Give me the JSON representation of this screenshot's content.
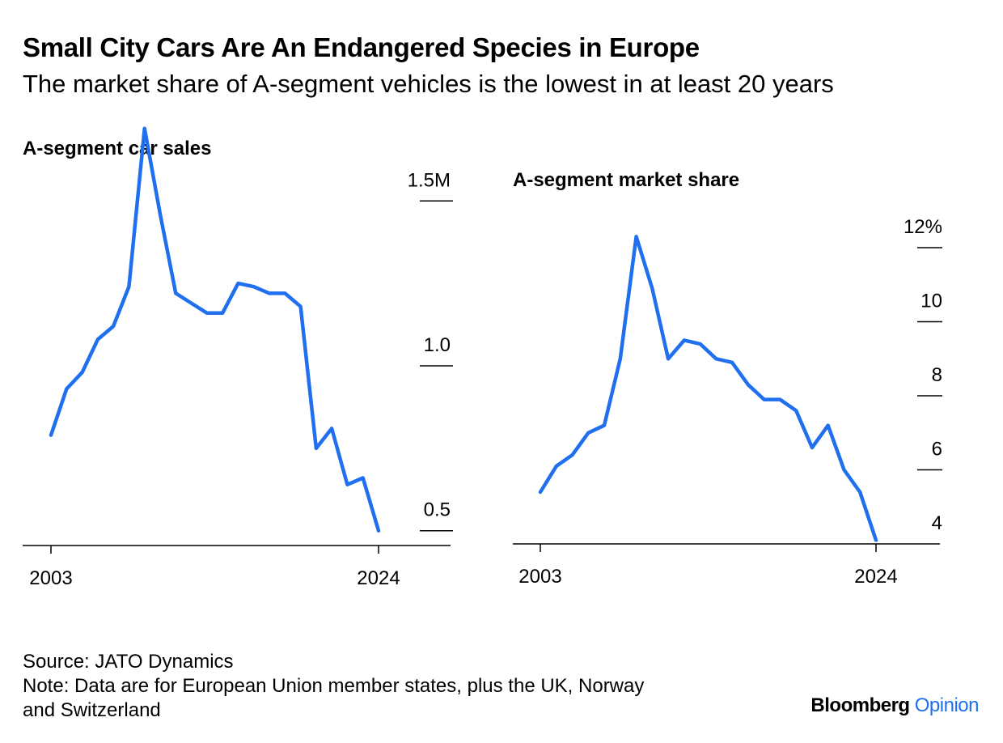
{
  "title": "Small City Cars Are An Endangered Species in Europe",
  "subtitle": "The market share of A-segment vehicles is the lowest in at least 20 years",
  "source": "Source: JATO Dynamics",
  "note_line1": "Note: Data are for European Union member states, plus the UK, Norway",
  "note_line2": "and Switzerland",
  "brand": {
    "name": "Bloomberg",
    "accent": "Opinion",
    "accent_color": "#1F6FEF"
  },
  "line_color": "#1F6FEF",
  "chart_data": [
    {
      "type": "line",
      "title": "A-segment car sales",
      "x_tick_labels": [
        "2003",
        "2024"
      ],
      "y_tick_labels": [
        "1.5M",
        "1.0",
        "0.5"
      ],
      "y_ticks": [
        1.5,
        1.0,
        0.5
      ],
      "xlim": [
        2003,
        2024
      ],
      "ylim": [
        0.46,
        1.54
      ],
      "x": [
        2003,
        2004,
        2005,
        2006,
        2007,
        2008,
        2009,
        2010,
        2011,
        2012,
        2013,
        2014,
        2015,
        2016,
        2017,
        2018,
        2019,
        2020,
        2021,
        2022,
        2023,
        2024
      ],
      "values": [
        0.79,
        0.93,
        0.98,
        1.08,
        1.12,
        1.24,
        1.72,
        1.46,
        1.22,
        1.19,
        1.16,
        1.16,
        1.25,
        1.24,
        1.22,
        1.22,
        1.18,
        0.75,
        0.81,
        0.64,
        0.66,
        0.5
      ]
    },
    {
      "type": "line",
      "title": "A-segment market share",
      "x_tick_labels": [
        "2003",
        "2024"
      ],
      "y_tick_labels": [
        "12%",
        "10",
        "8",
        "6",
        "4"
      ],
      "y_ticks": [
        12,
        10,
        8,
        6,
        4
      ],
      "xlim": [
        2003,
        2024
      ],
      "ylim": [
        4,
        12
      ],
      "x": [
        2003,
        2004,
        2005,
        2006,
        2007,
        2008,
        2009,
        2010,
        2011,
        2012,
        2013,
        2014,
        2015,
        2016,
        2017,
        2018,
        2019,
        2020,
        2021,
        2022,
        2023,
        2024
      ],
      "values": [
        5.4,
        6.1,
        6.4,
        7.0,
        7.2,
        9.0,
        12.3,
        10.9,
        9.0,
        9.5,
        9.4,
        9.0,
        8.9,
        8.3,
        7.9,
        7.9,
        7.6,
        6.6,
        7.2,
        6.0,
        5.4,
        4.1
      ]
    }
  ]
}
